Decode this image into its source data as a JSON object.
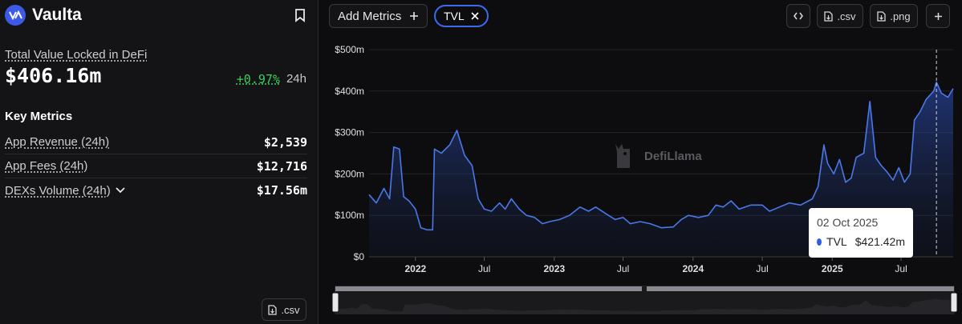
{
  "sidebar": {
    "brand_name": "Vaulta",
    "tvl_title": "Total Value Locked in DeFi",
    "tvl_value": "$406.16m",
    "change_pct": "+0.97%",
    "change_period": "24h",
    "key_metrics_title": "Key Metrics",
    "metrics": [
      {
        "label": "App Revenue (24h)",
        "value": "$2,539"
      },
      {
        "label": "App Fees (24h)",
        "value": "$12,716"
      },
      {
        "label": "DEXs Volume (24h)",
        "value": "$17.56m"
      }
    ],
    "csv_label": ".csv"
  },
  "toolbar": {
    "add_metrics_label": "Add Metrics",
    "tvl_chip_label": "TVL",
    "csv_label": ".csv",
    "png_label": ".png"
  },
  "tooltip": {
    "date": "02 Oct 2025",
    "series": "TVL",
    "value": "$421.42m"
  },
  "watermark": "DefiLlama",
  "colors": {
    "accent": "#3d6bf0",
    "positive": "#3ecf5a",
    "line": "#4a78e8"
  },
  "chart_data": {
    "type": "area",
    "ylabel": "",
    "xlabel": "",
    "ylim": [
      0,
      500
    ],
    "y_ticks": [
      "$0",
      "$100m",
      "$200m",
      "$300m",
      "$400m",
      "$500m"
    ],
    "x_ticks": [
      "2022",
      "Jul",
      "2023",
      "Jul",
      "2024",
      "Jul",
      "2025",
      "Jul"
    ],
    "x_tick_dates": [
      "2022-01-01",
      "2022-07-01",
      "2023-01-01",
      "2023-07-01",
      "2024-01-01",
      "2024-07-01",
      "2025-01-01",
      "2025-07-01"
    ],
    "x_range": [
      "2021-09-01",
      "2025-11-15"
    ],
    "series": [
      {
        "name": "TVL",
        "points": [
          [
            "2021-09-01",
            150
          ],
          [
            "2021-09-20",
            130
          ],
          [
            "2021-10-10",
            165
          ],
          [
            "2021-10-25",
            140
          ],
          [
            "2021-11-05",
            265
          ],
          [
            "2021-11-20",
            260
          ],
          [
            "2021-12-01",
            145
          ],
          [
            "2021-12-15",
            135
          ],
          [
            "2022-01-01",
            115
          ],
          [
            "2022-01-15",
            70
          ],
          [
            "2022-02-01",
            65
          ],
          [
            "2022-02-15",
            65
          ],
          [
            "2022-02-20",
            260
          ],
          [
            "2022-03-10",
            250
          ],
          [
            "2022-04-01",
            270
          ],
          [
            "2022-04-20",
            305
          ],
          [
            "2022-05-10",
            245
          ],
          [
            "2022-05-30",
            220
          ],
          [
            "2022-06-15",
            140
          ],
          [
            "2022-07-01",
            115
          ],
          [
            "2022-07-20",
            110
          ],
          [
            "2022-08-10",
            130
          ],
          [
            "2022-08-25",
            115
          ],
          [
            "2022-09-10",
            140
          ],
          [
            "2022-10-01",
            115
          ],
          [
            "2022-10-20",
            100
          ],
          [
            "2022-11-10",
            95
          ],
          [
            "2022-12-01",
            80
          ],
          [
            "2022-12-20",
            85
          ],
          [
            "2023-01-15",
            90
          ],
          [
            "2023-02-10",
            100
          ],
          [
            "2023-03-10",
            120
          ],
          [
            "2023-04-01",
            110
          ],
          [
            "2023-04-20",
            120
          ],
          [
            "2023-05-15",
            105
          ],
          [
            "2023-06-10",
            90
          ],
          [
            "2023-07-01",
            95
          ],
          [
            "2023-07-20",
            80
          ],
          [
            "2023-08-15",
            85
          ],
          [
            "2023-09-10",
            80
          ],
          [
            "2023-10-10",
            70
          ],
          [
            "2023-11-10",
            72
          ],
          [
            "2023-12-01",
            90
          ],
          [
            "2023-12-20",
            100
          ],
          [
            "2024-01-15",
            95
          ],
          [
            "2024-02-10",
            100
          ],
          [
            "2024-03-01",
            125
          ],
          [
            "2024-03-20",
            120
          ],
          [
            "2024-04-10",
            135
          ],
          [
            "2024-05-01",
            115
          ],
          [
            "2024-06-01",
            125
          ],
          [
            "2024-07-01",
            125
          ],
          [
            "2024-07-20",
            110
          ],
          [
            "2024-08-15",
            120
          ],
          [
            "2024-09-10",
            130
          ],
          [
            "2024-10-10",
            125
          ],
          [
            "2024-11-10",
            140
          ],
          [
            "2024-11-25",
            170
          ],
          [
            "2024-12-10",
            270
          ],
          [
            "2024-12-20",
            225
          ],
          [
            "2025-01-05",
            200
          ],
          [
            "2025-01-20",
            235
          ],
          [
            "2025-02-05",
            180
          ],
          [
            "2025-02-20",
            190
          ],
          [
            "2025-03-05",
            240
          ],
          [
            "2025-03-25",
            250
          ],
          [
            "2025-04-10",
            375
          ],
          [
            "2025-04-25",
            240
          ],
          [
            "2025-05-10",
            220
          ],
          [
            "2025-05-25",
            205
          ],
          [
            "2025-06-10",
            185
          ],
          [
            "2025-06-25",
            215
          ],
          [
            "2025-07-10",
            180
          ],
          [
            "2025-07-25",
            200
          ],
          [
            "2025-08-05",
            330
          ],
          [
            "2025-08-20",
            350
          ],
          [
            "2025-09-05",
            380
          ],
          [
            "2025-09-25",
            400
          ],
          [
            "2025-10-02",
            421.42
          ],
          [
            "2025-10-15",
            395
          ],
          [
            "2025-11-01",
            385
          ],
          [
            "2025-11-15",
            406.16
          ]
        ]
      }
    ],
    "hover_date": "2025-10-02",
    "grid": "horizontal"
  }
}
